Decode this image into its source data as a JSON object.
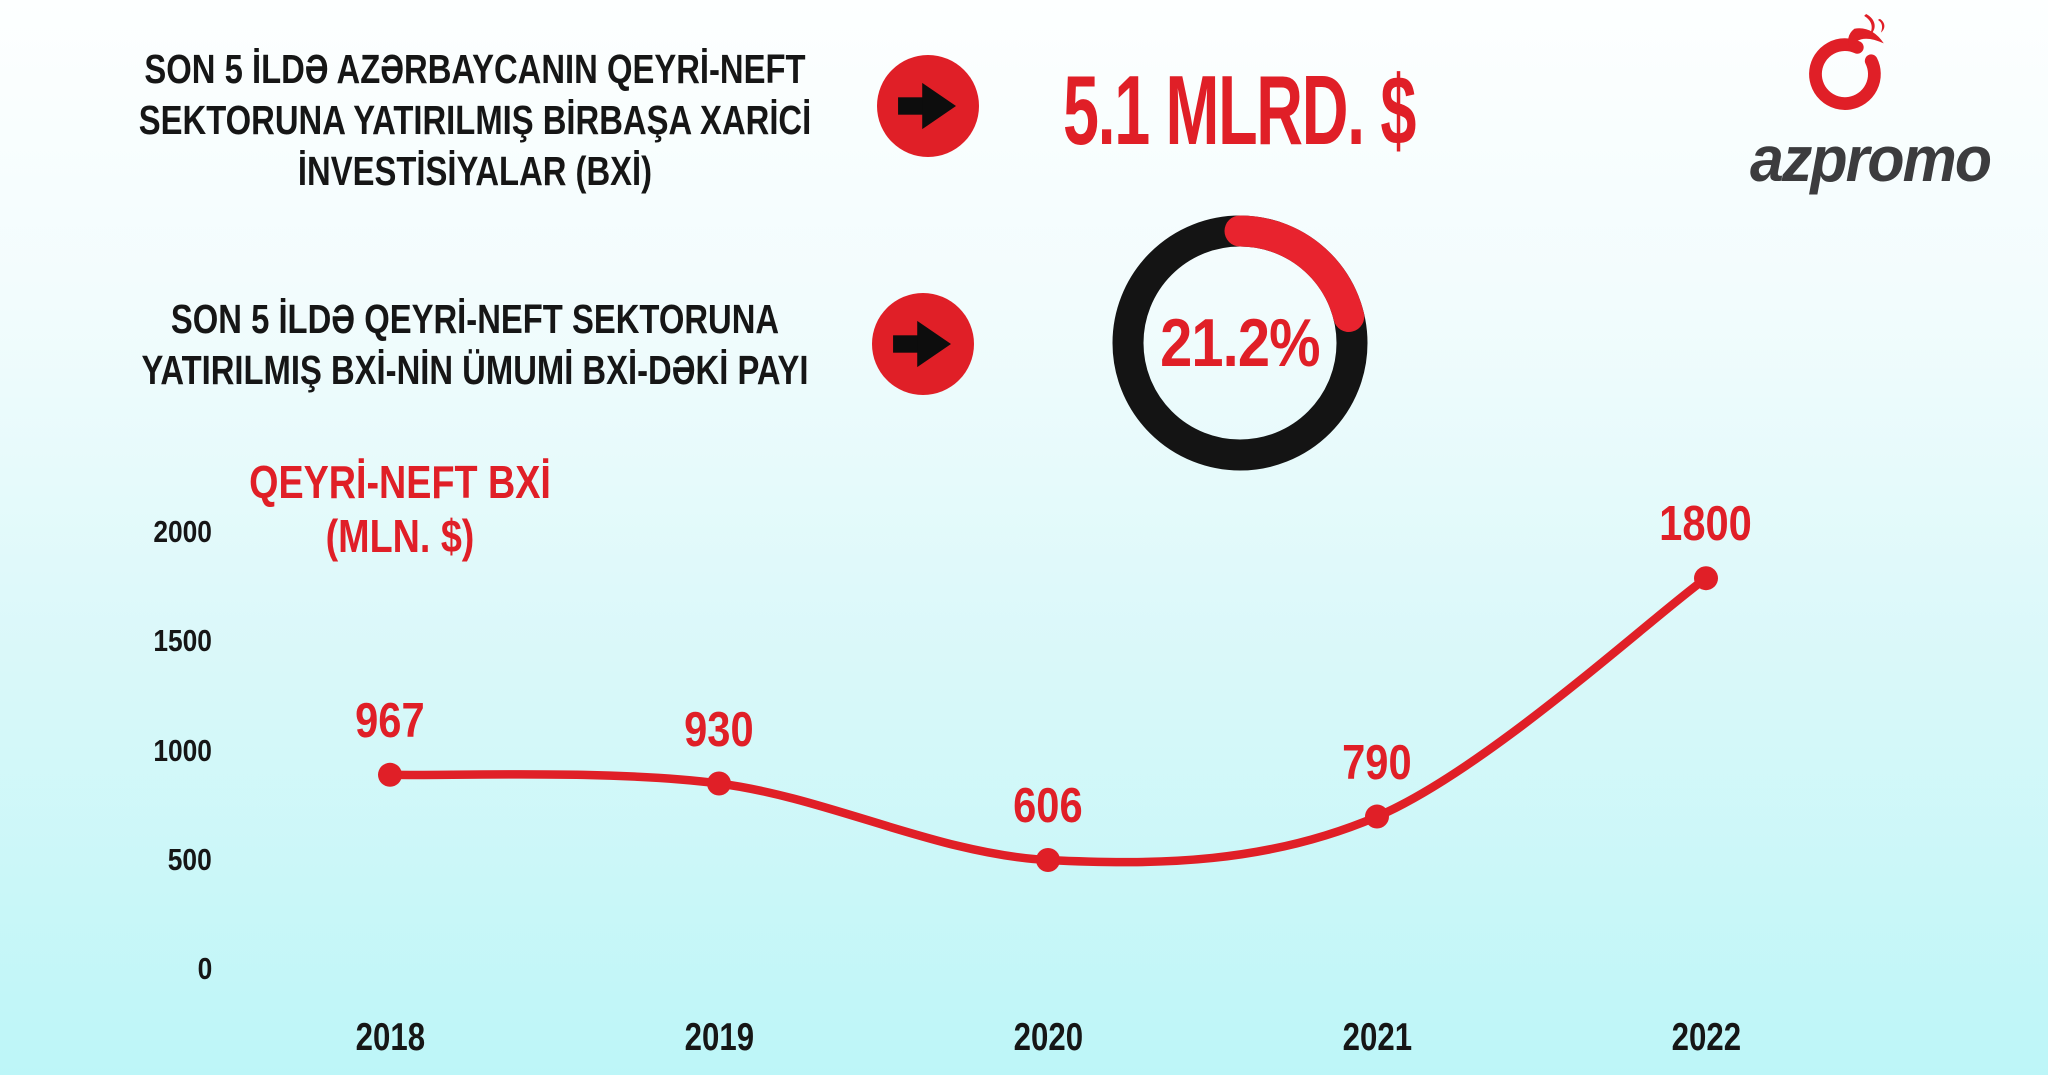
{
  "colors": {
    "accent_red": "#e01f27",
    "donut_red": "#e8232e",
    "ink_black": "#161616",
    "donut_black": "#141414",
    "logo_gray": "#3c3c3e",
    "bg_top": "#fdffff",
    "bg_bottom": "#bdf6f8"
  },
  "icons": {
    "stat_arrow": "right-arrow",
    "logo_mark": "flame-swirl"
  },
  "logo": {
    "brand": "azpromo"
  },
  "stats": [
    {
      "label": "SON 5 İLDƏ AZƏRBAYCANIN QEYRİ-NEFT\nSEKTORUNA YATIRILMIŞ BİRBAŞA XARİCİ\nİNVESTİSİYALAR (BXİ)",
      "value": "5.1 MLRD. $"
    },
    {
      "label": "SON 5 İLDƏ QEYRİ-NEFT SEKTORUNA\nYATIRILMIŞ BXİ-NİN ÜMUMİ BXİ-DƏKİ PAYI",
      "value": "21.2%",
      "donut_percent": 21.2
    }
  ],
  "chart_data": {
    "type": "line",
    "title": "QEYRİ-NEFT BXİ (MLN. $)",
    "categories": [
      "2018",
      "2019",
      "2020",
      "2021",
      "2022"
    ],
    "values": [
      967,
      930,
      606,
      790,
      1800
    ],
    "point_labels": [
      "967",
      "930",
      "606",
      "790",
      "1800"
    ],
    "y_ticks": [
      2000,
      1500,
      1000,
      500,
      0
    ],
    "ylim": [
      0,
      2000
    ],
    "grid": false,
    "legend": false,
    "marker": "circle",
    "line_color": "#e01f27"
  }
}
